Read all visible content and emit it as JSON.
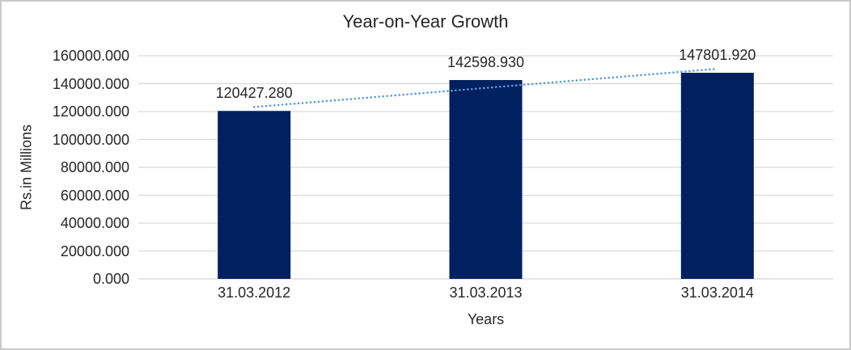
{
  "chart_data": {
    "type": "bar",
    "title": "Year-on-Year Growth",
    "xlabel": "Years",
    "ylabel": "Rs.in Millions",
    "categories": [
      "31.03.2012",
      "31.03.2013",
      "31.03.2014"
    ],
    "values": [
      120427.28,
      142598.93,
      147801.92
    ],
    "value_labels": [
      "120427.280",
      "142598.930",
      "147801.920"
    ],
    "ylim": [
      0,
      160000
    ],
    "ytick_step": 20000,
    "ytick_labels": [
      "0.000",
      "20000.000",
      "40000.000",
      "60000.000",
      "80000.000",
      "100000.000",
      "120000.000",
      "140000.000",
      "160000.000"
    ],
    "grid": true,
    "legend": "none",
    "trendline": {
      "type": "linear",
      "style": "dotted"
    },
    "colors": {
      "bar": "#002060",
      "trendline": "#5B9BD5",
      "gridline": "#D9D9D9",
      "axis_line": "#D4D4D4",
      "text": "#262626",
      "frame_border": "#C9C9C9",
      "background": "#FFFFFF"
    }
  }
}
